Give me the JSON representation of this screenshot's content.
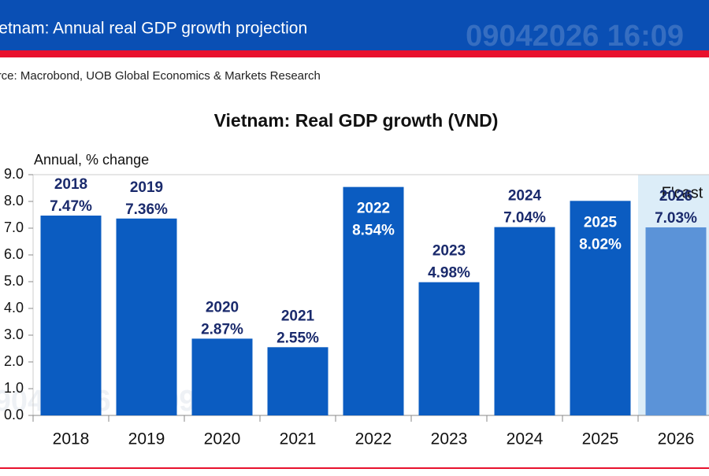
{
  "header": {
    "title": "Vietnam: Annual real GDP growth projection",
    "source": "Source: Macrobond, UOB Global Economics & Markets Research",
    "watermark": "09042026 16:09"
  },
  "chart_data": {
    "type": "bar",
    "title": "Vietnam: Real GDP growth (VND)",
    "ylabel": "Annual, % change",
    "categories": [
      "2018",
      "2019",
      "2020",
      "2021",
      "2022",
      "2023",
      "2024",
      "2025",
      "2026"
    ],
    "values": [
      7.47,
      7.36,
      2.87,
      2.55,
      8.54,
      4.98,
      7.04,
      8.02,
      7.03
    ],
    "value_labels": [
      "7.47%",
      "7.36%",
      "2.87%",
      "2.55%",
      "8.54%",
      "4.98%",
      "7.04%",
      "8.02%",
      "7.03%"
    ],
    "forecast": [
      false,
      false,
      false,
      false,
      false,
      false,
      false,
      false,
      true
    ],
    "forecast_label": "F'cast",
    "color": "#0b5cc1",
    "forecast_color": "#5b93d8",
    "forecast_shade": "#dcedf8",
    "ylim": [
      0,
      9
    ],
    "yticks": [
      {
        "value": 0,
        "label": "0.0"
      },
      {
        "value": 1,
        "label": "1.0"
      },
      {
        "value": 2,
        "label": "2.0"
      },
      {
        "value": 3,
        "label": "3.0"
      },
      {
        "value": 4,
        "label": "4.0"
      },
      {
        "value": 5,
        "label": "5.0"
      },
      {
        "value": 6,
        "label": "6.0"
      },
      {
        "value": 7,
        "label": "7.0"
      },
      {
        "value": 8,
        "label": "8.0"
      },
      {
        "value": 9,
        "label": "9.0"
      }
    ]
  }
}
